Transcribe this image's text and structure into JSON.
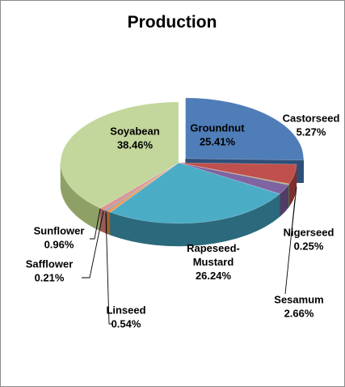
{
  "chart_data": {
    "type": "pie",
    "title": "Production",
    "style": "3d-exploded",
    "legend": "none",
    "slices": [
      {
        "label_lines": [
          "Groundnut",
          "25.41%"
        ],
        "value": 25.41,
        "color": "#4f7db7",
        "dark": "#2e4f78",
        "exploded": true
      },
      {
        "label_lines": [
          "Castorseed",
          "5.27%"
        ],
        "value": 5.27,
        "color": "#c0504d",
        "dark": "#7e2f2d",
        "exploded": false
      },
      {
        "label_lines": [
          "Nigerseed",
          "0.25%"
        ],
        "value": 0.25,
        "color": "#9bbb59",
        "dark": "#657a38",
        "exploded": false
      },
      {
        "label_lines": [
          "Sesamum",
          "2.66%"
        ],
        "value": 2.66,
        "color": "#8064a2",
        "dark": "#4f3d67",
        "exploded": false
      },
      {
        "label_lines": [
          "Rapeseed-",
          "Mustard",
          "26.24%"
        ],
        "value": 26.24,
        "color": "#4bacc6",
        "dark": "#2a6a7c",
        "exploded": false
      },
      {
        "label_lines": [
          "Linseed",
          "0.54%"
        ],
        "value": 0.54,
        "color": "#f79646",
        "dark": "#a85f22",
        "exploded": false
      },
      {
        "label_lines": [
          "Safflower",
          "0.21%"
        ],
        "value": 0.21,
        "color": "#4f81bd",
        "dark": "#2e4f78",
        "exploded": false
      },
      {
        "label_lines": [
          "Sunflower",
          "0.96%"
        ],
        "value": 0.96,
        "color": "#d99694",
        "dark": "#9a5b59",
        "exploded": false
      },
      {
        "label_lines": [
          "Soyabean",
          "38.46%"
        ],
        "value": 38.46,
        "color": "#c3d69b",
        "dark": "#8fa066",
        "exploded": false
      }
    ]
  }
}
